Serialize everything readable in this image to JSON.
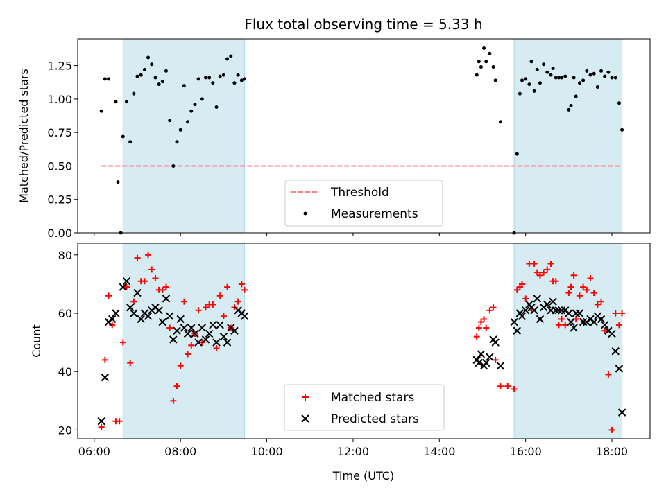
{
  "chart_data": [
    {
      "type": "scatter",
      "title": "Flux total observing time = 5.33 h",
      "xlabel": "",
      "ylabel": "Matched/Predicted stars",
      "xlim": [
        "05:37",
        "18:53"
      ],
      "ylim": [
        0,
        1.45
      ],
      "yticks": [
        "0.00",
        "0.25",
        "0.50",
        "0.75",
        "1.00",
        "1.25"
      ],
      "shaded_intervals": [
        [
          "06:40",
          "09:29"
        ],
        [
          "15:44",
          "18:14"
        ]
      ],
      "shade_color": "#add8e6",
      "threshold": {
        "name": "Threshold",
        "value": 0.5,
        "x_range": [
          "06:10",
          "18:14"
        ],
        "color": "#ff7f7f",
        "style": "dashed"
      },
      "legend": {
        "position": "lower-center",
        "entries": [
          "Threshold",
          "Measurements"
        ]
      },
      "series": [
        {
          "name": "Measurements",
          "color": "#000000",
          "marker": "dot",
          "x": [
            "06:10",
            "06:15",
            "06:20",
            "06:30",
            "06:33",
            "06:37",
            "06:40",
            "06:45",
            "06:50",
            "06:55",
            "07:00",
            "07:05",
            "07:10",
            "07:15",
            "07:20",
            "07:25",
            "07:30",
            "07:35",
            "07:40",
            "07:45",
            "07:50",
            "07:55",
            "08:00",
            "08:05",
            "08:10",
            "08:15",
            "08:20",
            "08:25",
            "08:30",
            "08:35",
            "08:40",
            "08:45",
            "08:50",
            "08:55",
            "09:00",
            "09:05",
            "09:10",
            "09:15",
            "09:20",
            "09:25",
            "09:29",
            "14:52",
            "14:55",
            "14:58",
            "15:02",
            "15:05",
            "15:10",
            "15:15",
            "15:18",
            "15:25",
            "15:44",
            "15:48",
            "15:52",
            "15:55",
            "16:00",
            "16:05",
            "16:08",
            "16:12",
            "16:16",
            "16:20",
            "16:25",
            "16:30",
            "16:35",
            "16:38",
            "16:42",
            "16:46",
            "16:50",
            "16:55",
            "17:00",
            "17:03",
            "17:07",
            "17:10",
            "17:15",
            "17:20",
            "17:25",
            "17:30",
            "17:35",
            "17:40",
            "17:45",
            "17:50",
            "17:55",
            "18:00",
            "18:05",
            "18:10",
            "18:14"
          ],
          "y": [
            0.91,
            1.15,
            1.15,
            0.98,
            0.38,
            0.0,
            0.72,
            0.98,
            0.68,
            1.04,
            1.17,
            1.18,
            1.22,
            1.31,
            1.26,
            1.16,
            1.11,
            1.13,
            1.21,
            0.84,
            0.5,
            0.68,
            0.77,
            1.1,
            0.83,
            0.91,
            0.96,
            1.15,
            1.0,
            1.16,
            1.16,
            1.12,
            0.94,
            1.17,
            1.18,
            1.3,
            1.32,
            1.12,
            1.18,
            1.14,
            1.15,
            1.18,
            1.28,
            1.24,
            1.38,
            1.28,
            1.34,
            1.24,
            1.14,
            0.83,
            0.0,
            0.59,
            1.04,
            1.14,
            1.15,
            1.11,
            1.28,
            1.06,
            1.22,
            1.12,
            1.26,
            1.2,
            1.18,
            1.23,
            1.16,
            1.16,
            1.16,
            1.17,
            0.92,
            0.95,
            1.16,
            1.02,
            1.12,
            1.14,
            1.21,
            1.18,
            1.19,
            1.09,
            1.21,
            1.17,
            1.2,
            1.16,
            1.16,
            0.97,
            0.77
          ]
        }
      ]
    },
    {
      "type": "scatter",
      "title": "",
      "xlabel": "Time (UTC)",
      "ylabel": "Count",
      "xlim": [
        "05:37",
        "18:53"
      ],
      "ylim": [
        17,
        84
      ],
      "xticks": [
        "06:00",
        "08:00",
        "10:00",
        "12:00",
        "14:00",
        "16:00",
        "18:00"
      ],
      "yticks": [
        "20",
        "40",
        "60",
        "80"
      ],
      "shaded_intervals": [
        [
          "06:40",
          "09:29"
        ],
        [
          "15:44",
          "18:14"
        ]
      ],
      "shade_color": "#add8e6",
      "legend": {
        "position": "lower-center",
        "entries": [
          "Matched stars",
          "Predicted stars"
        ]
      },
      "series": [
        {
          "name": "Matched stars",
          "color": "#ff0000",
          "marker": "plus",
          "x": [
            "06:10",
            "06:15",
            "06:20",
            "06:25",
            "06:30",
            "06:35",
            "06:40",
            "06:45",
            "06:50",
            "06:55",
            "07:00",
            "07:05",
            "07:10",
            "07:15",
            "07:20",
            "07:25",
            "07:30",
            "07:35",
            "07:40",
            "07:45",
            "07:50",
            "07:55",
            "08:00",
            "08:05",
            "08:10",
            "08:15",
            "08:20",
            "08:25",
            "08:30",
            "08:35",
            "08:40",
            "08:45",
            "08:50",
            "08:55",
            "09:00",
            "09:05",
            "09:10",
            "09:15",
            "09:20",
            "09:25",
            "09:29",
            "14:52",
            "14:55",
            "14:58",
            "15:02",
            "15:05",
            "15:10",
            "15:15",
            "15:18",
            "15:25",
            "15:35",
            "15:44",
            "15:48",
            "15:52",
            "15:55",
            "16:00",
            "16:05",
            "16:08",
            "16:12",
            "16:16",
            "16:20",
            "16:25",
            "16:30",
            "16:35",
            "16:38",
            "16:42",
            "16:46",
            "16:50",
            "16:55",
            "17:00",
            "17:03",
            "17:07",
            "17:10",
            "17:15",
            "17:20",
            "17:25",
            "17:30",
            "17:35",
            "17:40",
            "17:45",
            "17:50",
            "17:55",
            "18:00",
            "18:05",
            "18:10",
            "18:14"
          ],
          "y": [
            21,
            44,
            66,
            56,
            23,
            23,
            50,
            69,
            43,
            64,
            79,
            71,
            71,
            80,
            75,
            72,
            68,
            68,
            69,
            55,
            30,
            35,
            42,
            64,
            46,
            49,
            53,
            61,
            50,
            62,
            63,
            63,
            48,
            66,
            59,
            69,
            55,
            62,
            64,
            70,
            68,
            52,
            55,
            57,
            58,
            55,
            61,
            62,
            44,
            35,
            35,
            34,
            68,
            69,
            70,
            65,
            77,
            61,
            77,
            74,
            73,
            74,
            75,
            77,
            71,
            71,
            56,
            58,
            56,
            67,
            69,
            73,
            58,
            66,
            69,
            68,
            72,
            67,
            63,
            64,
            54,
            39,
            20,
            60,
            56,
            60
          ]
        },
        {
          "name": "Predicted stars",
          "color": "#000000",
          "marker": "x",
          "x": [
            "06:10",
            "06:15",
            "06:20",
            "06:25",
            "06:30",
            "06:40",
            "06:45",
            "06:50",
            "06:55",
            "07:00",
            "07:05",
            "07:10",
            "07:15",
            "07:20",
            "07:25",
            "07:30",
            "07:35",
            "07:40",
            "07:45",
            "07:50",
            "07:55",
            "08:00",
            "08:05",
            "08:10",
            "08:15",
            "08:20",
            "08:25",
            "08:30",
            "08:35",
            "08:40",
            "08:45",
            "08:50",
            "08:55",
            "09:00",
            "09:05",
            "09:10",
            "09:15",
            "09:20",
            "09:25",
            "09:29",
            "14:52",
            "14:55",
            "14:58",
            "15:02",
            "15:05",
            "15:10",
            "15:15",
            "15:18",
            "15:25",
            "15:44",
            "15:48",
            "15:52",
            "15:55",
            "16:00",
            "16:05",
            "16:08",
            "16:12",
            "16:16",
            "16:20",
            "16:25",
            "16:30",
            "16:35",
            "16:38",
            "16:42",
            "16:46",
            "16:50",
            "16:55",
            "17:00",
            "17:03",
            "17:07",
            "17:10",
            "17:15",
            "17:20",
            "17:25",
            "17:30",
            "17:35",
            "17:40",
            "17:45",
            "17:50",
            "17:55",
            "18:00",
            "18:05",
            "18:10",
            "18:14"
          ],
          "y": [
            23,
            38,
            57,
            58,
            60,
            69,
            71,
            62,
            60,
            67,
            58,
            60,
            59,
            61,
            62,
            61,
            57,
            65,
            59,
            51,
            54,
            58,
            55,
            53,
            55,
            53,
            50,
            55,
            51,
            53,
            56,
            50,
            56,
            52,
            50,
            55,
            54,
            61,
            60,
            59,
            44,
            43,
            46,
            42,
            43,
            45,
            51,
            50,
            42,
            57,
            54,
            60,
            59,
            61,
            63,
            62,
            61,
            65,
            58,
            62,
            63,
            61,
            64,
            61,
            61,
            61,
            61,
            60,
            57,
            55,
            60,
            60,
            57,
            57,
            58,
            57,
            59,
            58,
            56,
            54,
            53,
            47,
            41,
            26
          ]
        }
      ]
    }
  ]
}
